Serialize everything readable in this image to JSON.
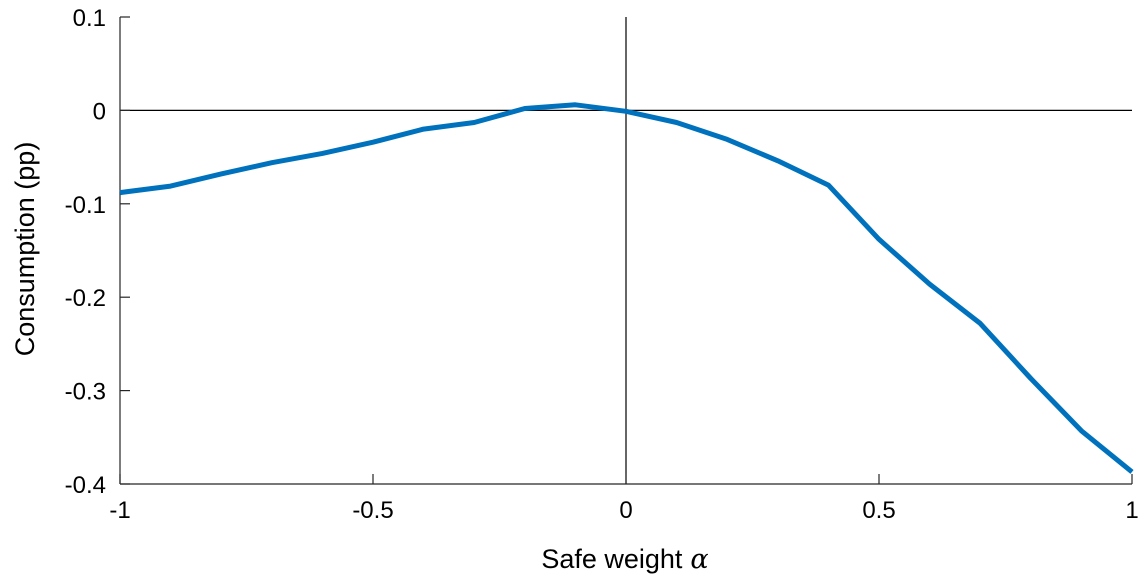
{
  "chart_data": {
    "type": "line",
    "xlabel": "Safe weight",
    "xlabel_symbol": "α",
    "ylabel": "Consumption (pp)",
    "xlim": [
      -1,
      1
    ],
    "ylim": [
      -0.4,
      0.1
    ],
    "xticks": [
      -1,
      -0.5,
      0,
      0.5,
      1
    ],
    "xtick_labels": [
      "-1",
      "-0.5",
      "0",
      "0.5",
      "1"
    ],
    "yticks": [
      0.1,
      0,
      -0.1,
      -0.2,
      -0.3,
      -0.4
    ],
    "ytick_labels": [
      "0.1",
      "0",
      "-0.1",
      "-0.2",
      "-0.3",
      "-0.4"
    ],
    "reference_lines": {
      "x": 0,
      "y": 0
    },
    "series": [
      {
        "color": "#0072BD",
        "x": [
          -1,
          -0.9,
          -0.8,
          -0.7,
          -0.6,
          -0.5,
          -0.4,
          -0.3,
          -0.2,
          -0.1,
          0,
          0.1,
          0.2,
          0.3,
          0.4,
          0.5,
          0.6,
          0.7,
          0.8,
          0.9,
          1
        ],
        "y": [
          -0.088,
          -0.081,
          -0.068,
          -0.056,
          -0.046,
          -0.034,
          -0.02,
          -0.013,
          0.002,
          0.006,
          -0.001,
          -0.013,
          -0.031,
          -0.054,
          -0.08,
          -0.138,
          -0.186,
          -0.228,
          -0.287,
          -0.343,
          -0.387
        ]
      }
    ]
  }
}
